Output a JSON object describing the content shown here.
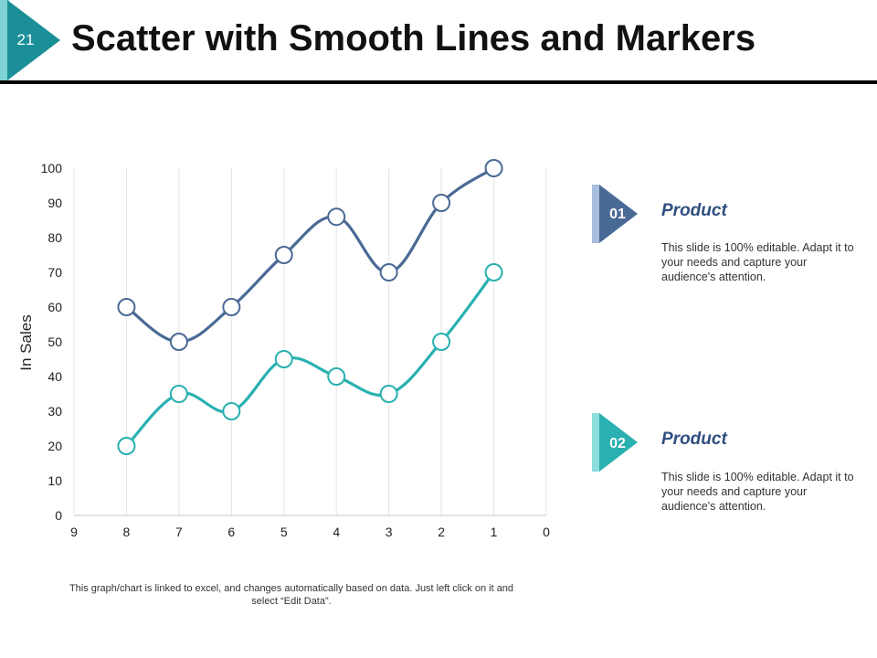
{
  "slide": {
    "number": "21",
    "title": "Scatter with Smooth Lines and Markers",
    "footnote": "This graph/chart is linked to excel, and changes automatically based on data. Just left click on it and select “Edit Data”."
  },
  "colors": {
    "series1": "#4a6a96",
    "series2": "#2ab0b0",
    "badge_dark": "#1a8f98",
    "badge_light": "#7fd3d6",
    "legend1_dark": "#4a6a96",
    "legend1_light": "#a9bedc",
    "legend2_dark": "#2ab0b0",
    "legend2_light": "#8fdcdc"
  },
  "chart_data": {
    "type": "scatter",
    "title": "",
    "xlabel": "",
    "ylabel": "In Sales",
    "xlim": [
      9,
      0
    ],
    "ylim": [
      0,
      100
    ],
    "x_ticks": [
      9,
      8,
      7,
      6,
      5,
      4,
      3,
      2,
      1,
      0
    ],
    "y_ticks": [
      0,
      10,
      20,
      30,
      40,
      50,
      60,
      70,
      80,
      90,
      100
    ],
    "grid": "vertical",
    "smooth": true,
    "series": [
      {
        "name": "Product 01",
        "x": [
          8,
          7,
          6,
          5,
          4,
          3,
          2,
          1
        ],
        "y": [
          60,
          50,
          60,
          75,
          86,
          70,
          90,
          100
        ]
      },
      {
        "name": "Product 02",
        "x": [
          8,
          7,
          6,
          5,
          4,
          3,
          2,
          1
        ],
        "y": [
          20,
          35,
          30,
          45,
          40,
          35,
          50,
          70
        ]
      }
    ]
  },
  "legend": [
    {
      "number": "01",
      "title": "Product",
      "description": "This slide is 100% editable. Adapt it to your needs and capture your audience's attention."
    },
    {
      "number": "02",
      "title": "Product",
      "description": "This slide is 100% editable. Adapt it to your needs and capture your audience's attention."
    }
  ]
}
